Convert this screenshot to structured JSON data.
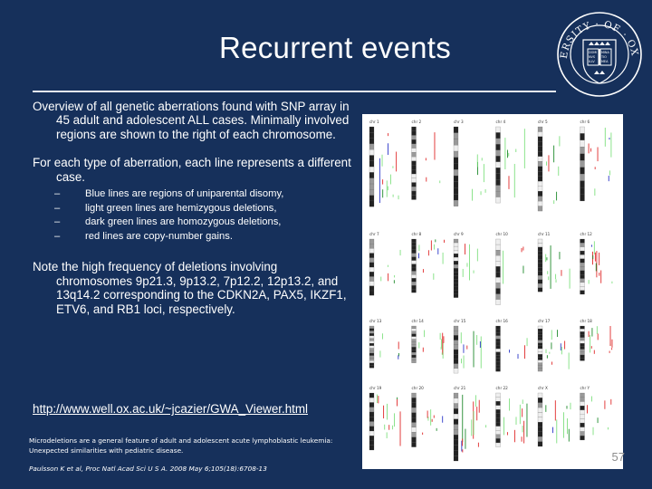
{
  "slide": {
    "title": "Recurrent events",
    "paragraph1": "Overview of all genetic aberrations found with SNP array in 45 adult and adolescent ALL cases. Minimally involved regions are shown to the right of each chromosome.",
    "paragraph2": "For each type of aberration, each line represents a different case.",
    "bullets": [
      "Blue lines are regions of uniparental disomy,",
      "light green lines are hemizygous deletions,",
      "dark green lines are homozygous deletions,",
      "red lines are copy-number gains."
    ],
    "bullet_marker": "–",
    "paragraph3": "Note the high frequency of deletions involving chromosomes 9p21.3, 9p13.2, 7p12.2, 12p13.2, and 13q14.2 corresponding to the CDKN2A, PAX5, IKZF1, ETV6, and RB1 loci, respectively.",
    "url": "http://www.well.ox.ac.uk/~jcazier/GWA_Viewer.html",
    "citation": "Microdeletions are a general feature of adult and adolescent acute lymphoblastic leukemia: Unexpected similarities with pediatric disease.",
    "reference_authors": "Paulsson K et al,",
    "reference_journal": "Proc Natl Acad Sci U S A. 2008 May 6;105(18):6708-13",
    "page_number": "57"
  },
  "logo": {
    "lettering": "UNIVERSITY · OF · OXFORD",
    "book_text": [
      "DOMI",
      "NVS",
      "ILLV",
      "MINA",
      "TIO",
      "MEA"
    ]
  },
  "figure": {
    "rows": [
      [
        "chr 1",
        "chr 2",
        "chr 3",
        "chr 4",
        "chr 5",
        "chr 6"
      ],
      [
        "chr 7",
        "chr 8",
        "chr 9",
        "chr 10",
        "chr 11",
        "chr 12"
      ],
      [
        "chr 13",
        "chr 14",
        "chr 15",
        "chr 16",
        "chr 17",
        "chr 18"
      ],
      [
        "chr 19",
        "chr 20",
        "chr 21",
        "chr 22",
        "chr X",
        "chr Y"
      ]
    ],
    "colors": {
      "uniparental_disomy": "#2b37c8",
      "hemizygous_deletion": "#7fe07f",
      "homozygous_deletion": "#1f8a2c",
      "gain": "#e02a2a"
    }
  },
  "colors": {
    "background": "#16305b",
    "text": "#ffffff",
    "rule": "#e9eef6",
    "page_number": "#8d8d8d"
  }
}
